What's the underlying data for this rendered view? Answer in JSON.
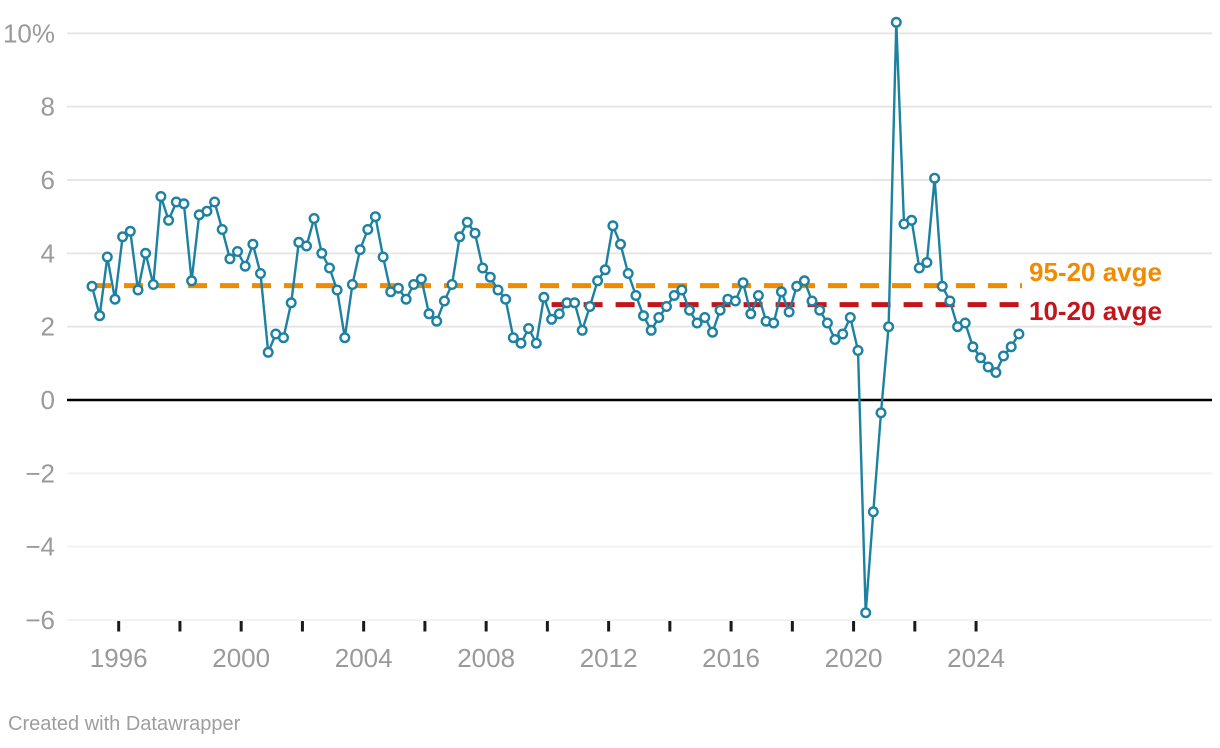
{
  "chart_data": {
    "type": "line",
    "title": "",
    "unit": "%",
    "frequency": "quarterly",
    "start_period": "1995-Q1",
    "end_period": "2025-Q2",
    "series": [
      {
        "name": "quarterly-values-pct",
        "values": [
          3.1,
          2.3,
          3.9,
          2.75,
          4.45,
          4.6,
          3.0,
          4.0,
          3.15,
          5.55,
          4.9,
          5.4,
          5.35,
          3.25,
          5.05,
          5.15,
          5.4,
          4.65,
          3.85,
          4.05,
          3.65,
          4.25,
          3.45,
          1.3,
          1.8,
          1.7,
          2.65,
          4.3,
          4.2,
          4.95,
          4.0,
          3.6,
          3.0,
          1.7,
          3.15,
          4.1,
          4.65,
          5.0,
          3.9,
          2.95,
          3.05,
          2.75,
          3.15,
          3.3,
          2.35,
          2.15,
          2.7,
          3.15,
          4.45,
          4.85,
          4.55,
          3.6,
          3.35,
          3.0,
          2.75,
          1.7,
          1.55,
          1.95,
          1.55,
          2.8,
          2.2,
          2.35,
          2.65,
          2.65,
          1.9,
          2.55,
          3.25,
          3.55,
          4.75,
          4.25,
          3.45,
          2.85,
          2.3,
          1.9,
          2.25,
          2.55,
          2.85,
          3.0,
          2.45,
          2.1,
          2.25,
          1.85,
          2.45,
          2.75,
          2.7,
          3.2,
          2.35,
          2.85,
          2.15,
          2.1,
          2.95,
          2.4,
          3.1,
          3.25,
          2.7,
          2.45,
          2.1,
          1.65,
          1.8,
          2.25,
          1.35,
          -5.8,
          -3.05,
          -0.35,
          2.0,
          10.3,
          4.8,
          4.9,
          3.6,
          3.75,
          6.05,
          3.1,
          2.7,
          2.0,
          2.1,
          1.45,
          1.15,
          0.9,
          0.75,
          1.2,
          1.45,
          1.8
        ]
      }
    ],
    "y_ticks": [
      {
        "label": "10%",
        "value": 10
      },
      {
        "label": "8",
        "value": 8
      },
      {
        "label": "6",
        "value": 6
      },
      {
        "label": "4",
        "value": 4
      },
      {
        "label": "2",
        "value": 2
      },
      {
        "label": "0",
        "value": 0
      },
      {
        "label": "−2",
        "value": -2
      },
      {
        "label": "−4",
        "value": -4
      },
      {
        "label": "−6",
        "value": -6
      }
    ],
    "ylim": [
      -6,
      10.35
    ],
    "x_tick_years": [
      1996,
      1998,
      2000,
      2002,
      2004,
      2006,
      2008,
      2010,
      2012,
      2014,
      2016,
      2018,
      2020,
      2022,
      2024
    ],
    "x_label_years": [
      "1996",
      "2000",
      "2004",
      "2008",
      "2012",
      "2016",
      "2020",
      "2024"
    ],
    "grid": true,
    "legend_position": "right-of-reference-lines",
    "reference_lines": [
      {
        "label": "95-20 avge",
        "value": 3.12,
        "from_period": "1995-Q1",
        "from_index": 0,
        "color": "#f08b00"
      },
      {
        "label": "10-20 avge",
        "value": 2.6,
        "from_period": "2010-Q1",
        "from_index": 60,
        "color": "#c4151c"
      }
    ]
  },
  "colors": {
    "line": "#1d81a2",
    "marker_fill": "#ffffff",
    "orange_ref": "#f08b00",
    "red_ref": "#c4151c",
    "axis_label": "#9a9a9a",
    "grid_positive": "#e6e6e6",
    "grid_negative": "#f2f2f2",
    "zero_line": "#000000",
    "tick_mark": "#1a1a1a",
    "footer_text": "#9e9e9e"
  },
  "footer": {
    "credit": "Created with Datawrapper"
  }
}
